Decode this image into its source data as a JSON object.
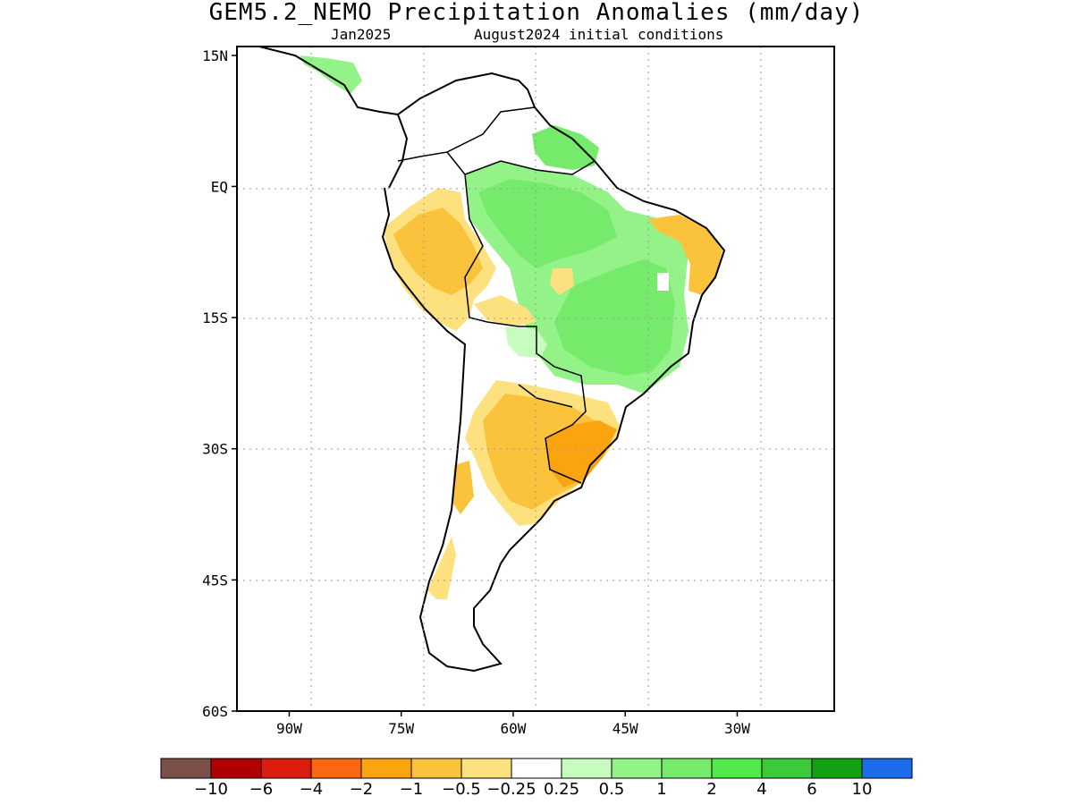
{
  "title": "GEM5.2_NEMO Precipitation Anomalies (mm/day)",
  "subtitle": {
    "valid": "Jan2025",
    "init": "August2024 initial conditions"
  },
  "map": {
    "lon_range": [
      -97,
      -17
    ],
    "lat_range": [
      -60,
      16
    ],
    "lat_ticks": [
      {
        "value": 15,
        "label": "15N"
      },
      {
        "value": 0,
        "label": "EQ"
      },
      {
        "value": -15,
        "label": "15S"
      },
      {
        "value": -30,
        "label": "30S"
      },
      {
        "value": -45,
        "label": "45S"
      },
      {
        "value": -60,
        "label": "60S"
      }
    ],
    "lon_ticks": [
      {
        "value": -90,
        "label": "90W"
      },
      {
        "value": -75,
        "label": "75W"
      },
      {
        "value": -60,
        "label": "60W"
      },
      {
        "value": -45,
        "label": "45W"
      },
      {
        "value": -30,
        "label": "30W"
      }
    ],
    "grid": "dotted"
  },
  "colorbar": {
    "colors": [
      "#7b5048",
      "#b20000",
      "#dd1c10",
      "#fb6610",
      "#fba410",
      "#fbc33c",
      "#fde17e",
      "#ffffff",
      "#c7fcbf",
      "#93f288",
      "#76eb6b",
      "#52e94a",
      "#3bcb3a",
      "#12a112",
      "#1d6ceb"
    ],
    "labels": [
      "-10",
      "-6",
      "-4",
      "-2",
      "-1",
      "-0.5",
      "-0.25",
      "0.25",
      "0.5",
      "1",
      "2",
      "4",
      "6",
      "10"
    ]
  }
}
